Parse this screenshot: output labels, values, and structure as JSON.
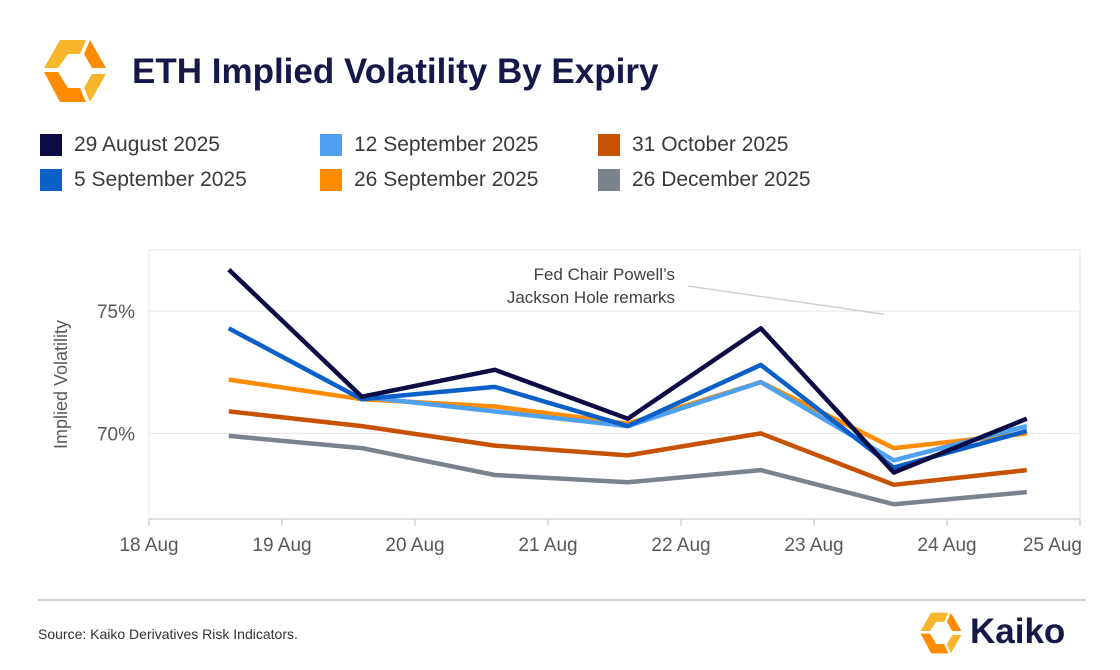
{
  "header": {
    "title": "ETH Implied Volatility By Expiry",
    "logo": "kaiko-logo-icon"
  },
  "colors": {
    "logo_orange": "#ff8c00",
    "logo_yellow": "#f8b62d",
    "title": "#16184a",
    "grid": "#e6e6e6",
    "axis": "#bfbfbf",
    "tick_text": "#595959"
  },
  "chart_data": {
    "type": "line",
    "title": "ETH Implied Volatility By Expiry",
    "xlabel": "",
    "ylabel": "Implied Volatility",
    "x_ticks": [
      "18 Aug",
      "19 Aug",
      "20 Aug",
      "21 Aug",
      "22 Aug",
      "23 Aug",
      "24 Aug",
      "25 Aug"
    ],
    "y_ticks": [
      {
        "value": 70,
        "label": "70%"
      },
      {
        "value": 75,
        "label": "75%"
      }
    ],
    "xlim": [
      0,
      7
    ],
    "ylim": [
      66.5,
      77.5
    ],
    "grid": true,
    "legend_position": "top",
    "x": [
      0.6,
      1.6,
      2.6,
      3.6,
      4.6,
      5.6,
      6.6
    ],
    "series": [
      {
        "name": "29 August 2025",
        "color": "#0d0c45",
        "values": [
          76.7,
          71.5,
          72.6,
          70.6,
          74.3,
          68.4,
          70.6
        ]
      },
      {
        "name": "5 September 2025",
        "color": "#0a5fc8",
        "values": [
          74.3,
          71.4,
          71.9,
          70.3,
          72.8,
          68.6,
          70.1
        ]
      },
      {
        "name": "12 September 2025",
        "color": "#4da1ef",
        "values": [
          null,
          71.5,
          null,
          70.3,
          72.1,
          68.9,
          70.3
        ]
      },
      {
        "name": "26 September 2025",
        "color": "#ff8c00",
        "values": [
          72.2,
          71.4,
          71.1,
          70.4,
          72.1,
          69.4,
          70.0
        ]
      },
      {
        "name": "31 October 2025",
        "color": "#c85204",
        "values": [
          70.9,
          70.3,
          69.5,
          69.1,
          70.0,
          67.9,
          68.5
        ]
      },
      {
        "name": "26 December 2025",
        "color": "#7a828e",
        "values": [
          69.9,
          69.4,
          68.3,
          68.0,
          68.5,
          67.1,
          67.6
        ]
      }
    ],
    "annotation": {
      "lines": [
        "Fed Chair Powell’s",
        "Jackson Hole remarks"
      ],
      "target_x": 5.6,
      "target_y": 74.3
    }
  },
  "footer": {
    "source": "Source: Kaiko Derivatives Risk Indicators.",
    "brand": "Kaiko"
  }
}
